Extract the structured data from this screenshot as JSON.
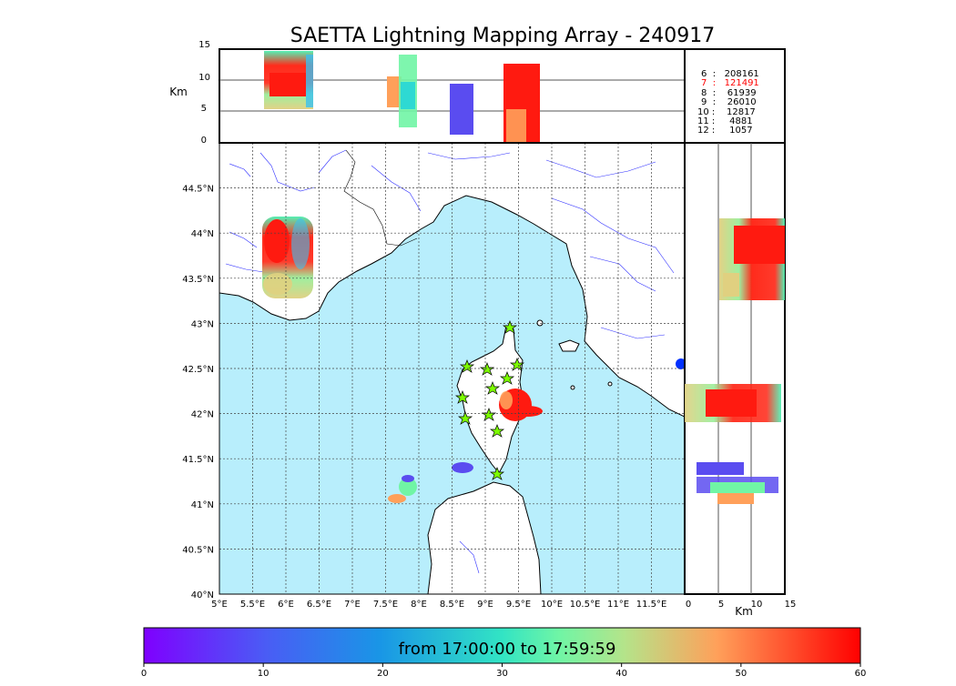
{
  "title": "SAETTA Lightning Mapping Array - 240917",
  "top_panel": {
    "ylabel": "Km",
    "y_ticks": [
      "15",
      "10",
      "5",
      "0"
    ]
  },
  "side_panel": {
    "xlabel": "Km",
    "x_ticks": [
      "0",
      "5",
      "10",
      "15"
    ]
  },
  "stats": [
    {
      "label": "6  :   208161",
      "color": "#000000"
    },
    {
      "label": "7  :   121491",
      "color": "#ff0000"
    },
    {
      "label": "8  :    61939",
      "color": "#000000"
    },
    {
      "label": "9  :    26010",
      "color": "#000000"
    },
    {
      "label": "10 :    12817",
      "color": "#000000"
    },
    {
      "label": "11 :     4881",
      "color": "#000000"
    },
    {
      "label": "12 :     1057",
      "color": "#000000"
    }
  ],
  "map": {
    "lat_labels": [
      "44.5°N",
      "44°N",
      "43.5°N",
      "43°N",
      "42.5°N",
      "42°N",
      "41.5°N",
      "41°N",
      "40.5°N",
      "40°N"
    ],
    "lon_labels": [
      "5°E",
      "5.5°E",
      "6°E",
      "6.5°E",
      "7°E",
      "7.5°E",
      "8°E",
      "8.5°E",
      "9°E",
      "9.5°E",
      "10°E",
      "10.5°E",
      "11°E",
      "11.5°E"
    ],
    "sea_color": "#b8eefc",
    "station_color": "#7cfc00"
  },
  "colorbar": {
    "label": "from 17:00:00 to 17:59:59",
    "ticks": [
      "0",
      "10",
      "20",
      "30",
      "40",
      "50",
      "60"
    ]
  }
}
